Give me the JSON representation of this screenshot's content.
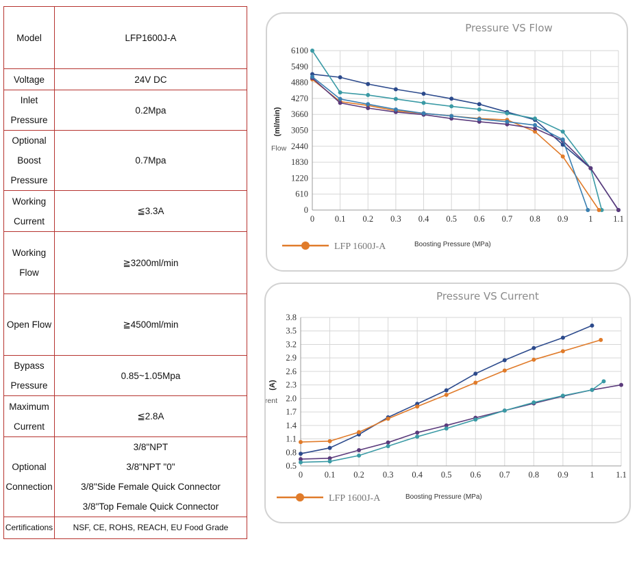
{
  "spec_table": {
    "rows": [
      {
        "label": [
          "Model"
        ],
        "value": [
          "LFP1600J-A"
        ]
      },
      {
        "label": [
          "Voltage"
        ],
        "value": [
          "24V DC"
        ]
      },
      {
        "label": [
          "Inlet",
          "Pressure"
        ],
        "value": [
          "0.2Mpa"
        ]
      },
      {
        "label": [
          "Optional",
          "Boost",
          "Pressure"
        ],
        "value": [
          "0.7Mpa"
        ]
      },
      {
        "label": [
          "Working",
          "Current"
        ],
        "value": [
          "≦3.3A"
        ]
      },
      {
        "label": [
          "Working",
          "Flow"
        ],
        "value": [
          "≧3200ml/min"
        ]
      },
      {
        "label": [
          "Open Flow"
        ],
        "value": [
          "≧4500ml/min"
        ]
      },
      {
        "label": [
          "Bypass",
          "Pressure"
        ],
        "value": [
          "0.85~1.05Mpa"
        ]
      },
      {
        "label": [
          "Maximum",
          "Current"
        ],
        "value": [
          "≦2.8A"
        ]
      },
      {
        "label": [
          "Optional",
          "Connection"
        ],
        "value": [
          "3/8\"NPT",
          "3/8\"NPT \"0\"",
          "3/8\"Side Female Quick Connector",
          "3/8\"Top Female Quick Connector"
        ]
      },
      {
        "label": [
          "Certifications"
        ],
        "value": [
          "NSF, CE, ROHS, REACH, EU Food Grade"
        ]
      }
    ]
  },
  "chart_data": [
    {
      "type": "line",
      "title": "Pressure VS Flow",
      "xlabel": "Boosting Pressure (MPa)",
      "ylabel": "(ml/min)",
      "ylabel_secondary": "Flow",
      "x_ticks": [
        "0",
        "0.1",
        "0.2",
        "0.3",
        "0.4",
        "0.5",
        "0.6",
        "0.7",
        "0.8",
        "0.9",
        "1",
        "1.1"
      ],
      "y_ticks": [
        "0",
        "610",
        "1220",
        "1830",
        "2440",
        "3050",
        "3660",
        "4270",
        "4880",
        "5490",
        "6100"
      ],
      "xlim": [
        0,
        1.1
      ],
      "ylim": [
        0,
        6100
      ],
      "grid": true,
      "legend": {
        "position": "bottom-left",
        "label": "LFP 1600J-A",
        "color": "#e07b2a"
      },
      "series": [
        {
          "color": "#2c4a8c",
          "x": [
            0,
            0.1,
            0.2,
            0.3,
            0.4,
            0.5,
            0.6,
            0.7,
            0.8,
            0.9,
            1,
            1.1
          ],
          "y": [
            5200,
            5080,
            4820,
            4620,
            4450,
            4260,
            4050,
            3750,
            3450,
            2500,
            1600,
            0
          ]
        },
        {
          "color": "#3a9aa5",
          "x": [
            0,
            0.1,
            0.2,
            0.3,
            0.4,
            0.5,
            0.6,
            0.7,
            0.8,
            0.9,
            1,
            1.04
          ],
          "y": [
            6100,
            4500,
            4400,
            4250,
            4100,
            3970,
            3850,
            3700,
            3500,
            3000,
            1600,
            0
          ]
        },
        {
          "color": "#e07b2a",
          "x": [
            0,
            0.1,
            0.2,
            0.3,
            0.4,
            0.5,
            0.6,
            0.7,
            0.8,
            0.9,
            1.03
          ],
          "y": [
            5000,
            4150,
            4000,
            3800,
            3700,
            3600,
            3500,
            3450,
            3000,
            2050,
            0
          ]
        },
        {
          "color": "#5b3b7c",
          "x": [
            0,
            0.1,
            0.2,
            0.3,
            0.4,
            0.5,
            0.6,
            0.7,
            0.8,
            0.9,
            1,
            1.1
          ],
          "y": [
            5050,
            4100,
            3900,
            3750,
            3650,
            3500,
            3380,
            3280,
            3120,
            2650,
            1600,
            0
          ]
        },
        {
          "color": "#3a7fb0",
          "x": [
            0,
            0.1,
            0.2,
            0.3,
            0.4,
            0.5,
            0.6,
            0.7,
            0.8,
            0.9,
            0.99
          ],
          "y": [
            5100,
            4250,
            4050,
            3850,
            3700,
            3600,
            3480,
            3380,
            3250,
            2700,
            0
          ]
        }
      ]
    },
    {
      "type": "line",
      "title": "Pressure VS Current",
      "xlabel": "Boosting Pressure (MPa)",
      "ylabel": "(A)",
      "ylabel_secondary": "Current",
      "x_ticks": [
        "0",
        "0.1",
        "0.2",
        "0.3",
        "0.4",
        "0.5",
        "0.6",
        "0.7",
        "0.8",
        "0.9",
        "1",
        "1.1"
      ],
      "y_ticks": [
        "0.5",
        "0.8",
        "1.1",
        "1.4",
        "1.7",
        "2.0",
        "2.3",
        "2.6",
        "2.9",
        "3.2",
        "3.5",
        "3.8"
      ],
      "xlim": [
        0,
        1.1
      ],
      "ylim": [
        0.5,
        3.8
      ],
      "grid": true,
      "legend": {
        "position": "bottom-left",
        "label": "LFP 1600J-A",
        "color": "#e07b2a"
      },
      "series": [
        {
          "color": "#2c4a8c",
          "x": [
            0,
            0.1,
            0.2,
            0.3,
            0.4,
            0.5,
            0.6,
            0.7,
            0.8,
            0.9,
            1
          ],
          "y": [
            0.77,
            0.9,
            1.2,
            1.58,
            1.88,
            2.18,
            2.55,
            2.85,
            3.12,
            3.35,
            3.62
          ]
        },
        {
          "color": "#e07b2a",
          "x": [
            0,
            0.1,
            0.2,
            0.3,
            0.4,
            0.5,
            0.6,
            0.7,
            0.8,
            0.9,
            1.03
          ],
          "y": [
            1.03,
            1.05,
            1.25,
            1.55,
            1.82,
            2.08,
            2.35,
            2.62,
            2.86,
            3.05,
            3.3
          ]
        },
        {
          "color": "#5b3b7c",
          "x": [
            0,
            0.1,
            0.2,
            0.3,
            0.4,
            0.5,
            0.6,
            0.7,
            0.8,
            0.9,
            1,
            1.1
          ],
          "y": [
            0.65,
            0.67,
            0.85,
            1.02,
            1.24,
            1.4,
            1.57,
            1.73,
            1.89,
            2.05,
            2.19,
            2.3
          ]
        },
        {
          "color": "#3a9aa5",
          "x": [
            0,
            0.1,
            0.2,
            0.3,
            0.4,
            0.5,
            0.6,
            0.7,
            0.8,
            0.9,
            1,
            1.04
          ],
          "y": [
            0.58,
            0.6,
            0.73,
            0.94,
            1.15,
            1.33,
            1.53,
            1.73,
            1.91,
            2.06,
            2.19,
            2.38
          ]
        }
      ]
    }
  ]
}
